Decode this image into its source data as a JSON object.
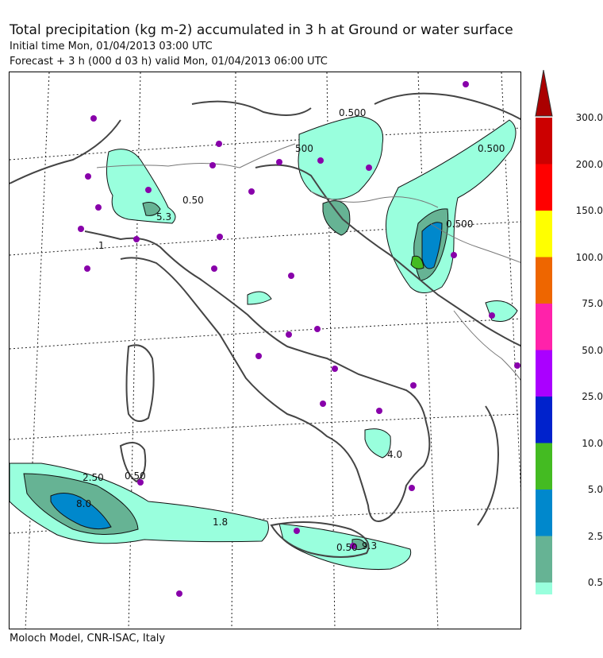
{
  "header": {
    "title": "Total precipitation (kg m-2) accumulated in   3 h at Ground or water surface",
    "initial_time": "Initial time  Mon, 01/04/2013  03:00 UTC",
    "forecast": "Forecast +   3 h  (000 d 03 h)  valid Mon, 01/04/2013 06:00 UTC"
  },
  "footer": "Moloch Model, CNR-ISAC, Italy",
  "legend": {
    "items": [
      {
        "label": "300.0",
        "color": "#cc0000"
      },
      {
        "label": "200.0",
        "color": "#ff0000"
      },
      {
        "label": "150.0",
        "color": "#ffff00"
      },
      {
        "label": "100.0",
        "color": "#ee6600"
      },
      {
        "label": "75.0",
        "color": "#ff22aa"
      },
      {
        "label": "50.0",
        "color": "#aa00ff"
      },
      {
        "label": "25.0",
        "color": "#0022cc"
      },
      {
        "label": "10.0",
        "color": "#44bb22"
      },
      {
        "label": "5.0",
        "color": "#0088cc"
      },
      {
        "label": "2.5",
        "color": "#66b394"
      },
      {
        "label": "0.5",
        "color": "#99ffdd"
      }
    ],
    "top_color": "#aa0000"
  },
  "map_labels": {
    "c1": "0.500",
    "c2": "500",
    "c3": "0.500",
    "c4": "0.50",
    "c5": "5.3",
    "c6": "0.500",
    "c7": "2.50",
    "c8": "0.50",
    "c9": "8.0",
    "c10": "1.8",
    "c11": "4.0",
    "c12": "0.50",
    "c13": "9.3",
    "c14": ".1"
  }
}
